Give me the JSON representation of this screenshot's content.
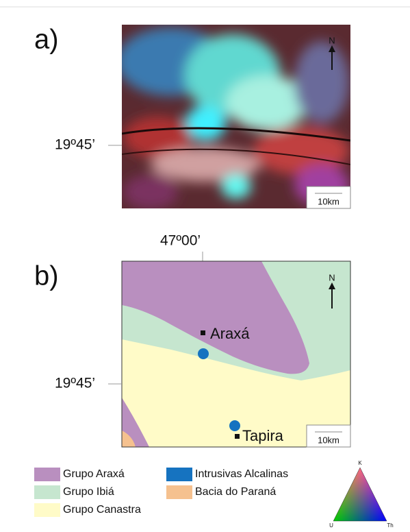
{
  "panel_a": {
    "label": "a)",
    "lat_label": "19º45’",
    "north": "N",
    "scale": "10km"
  },
  "panel_b": {
    "label": "b)",
    "lon_label": "47º00’",
    "lat_label": "19º45’",
    "north": "N",
    "scale": "10km",
    "places": [
      "Araxá",
      "Tapira"
    ]
  },
  "legend": {
    "items": [
      "Grupo Araxá",
      "Grupo Ibiá",
      "Grupo Canastra",
      "Intrusivas Alcalinas",
      "Bacia do Paraná"
    ]
  },
  "ternary": {
    "top": "K",
    "left": "U",
    "right": "Th"
  }
}
